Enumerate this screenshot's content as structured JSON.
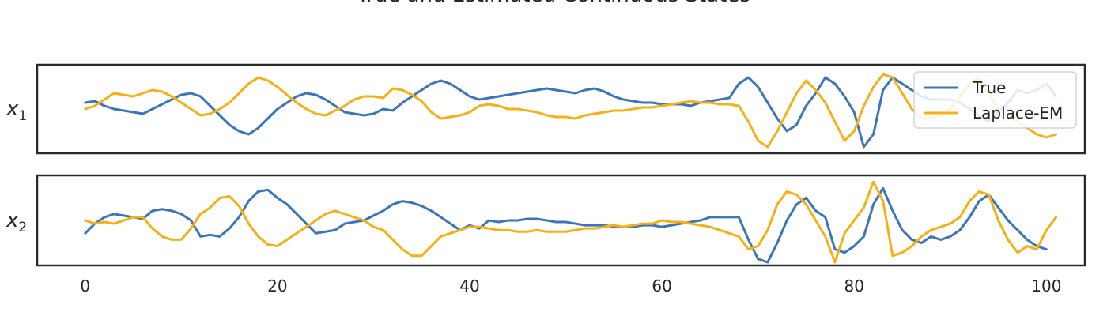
{
  "chart_data": {
    "type": "line",
    "title": "True and Estimated Continuous States",
    "xlim": [
      -5,
      104
    ],
    "x_ticks": [
      0,
      20,
      40,
      60,
      80,
      100
    ],
    "colors": {
      "True": "#3b75bb",
      "Laplace-EM": "#f7b014",
      "frame": "#2a2a2a"
    },
    "legend": {
      "placement": "top-right",
      "entries": [
        "True",
        "Laplace-EM"
      ]
    },
    "grid": false,
    "panels": [
      {
        "ylabel": "x",
        "ylabel_sub": "1",
        "ylim": [
          -1.6,
          1.2
        ],
        "series": [
          {
            "name": "True",
            "values": [
              0.0,
              0.05,
              -0.1,
              -0.2,
              -0.25,
              -0.3,
              -0.35,
              -0.2,
              -0.05,
              0.1,
              0.25,
              0.3,
              0.2,
              -0.1,
              -0.4,
              -0.7,
              -0.9,
              -1.0,
              -0.8,
              -0.5,
              -0.2,
              0.0,
              0.2,
              0.3,
              0.25,
              0.1,
              -0.1,
              -0.3,
              -0.35,
              -0.4,
              -0.35,
              -0.2,
              -0.25,
              0.0,
              0.2,
              0.4,
              0.6,
              0.7,
              0.6,
              0.4,
              0.2,
              0.1,
              0.15,
              0.2,
              0.25,
              0.3,
              0.35,
              0.4,
              0.45,
              0.4,
              0.35,
              0.3,
              0.4,
              0.45,
              0.35,
              0.2,
              0.1,
              0.05,
              0.0,
              0.0,
              -0.05,
              -0.05,
              -0.05,
              -0.1,
              0.0,
              0.05,
              0.1,
              0.15,
              0.6,
              0.8,
              0.5,
              0.0,
              -0.5,
              -0.9,
              -0.7,
              -0.1,
              0.3,
              0.8,
              0.6,
              0.2,
              -0.3,
              -1.4,
              -1.0,
              0.4,
              0.8,
              0.6,
              0.4,
              0.2,
              0.1,
              0.1,
              0.1,
              0.0,
              -0.2,
              -0.4,
              -0.6,
              -0.3,
              0.0,
              0.4,
              0.3,
              0.4,
              0.6,
              0.2
            ]
          },
          {
            "name": "Laplace-EM",
            "values": [
              -0.2,
              -0.1,
              0.1,
              0.3,
              0.25,
              0.2,
              0.3,
              0.4,
              0.35,
              0.2,
              0.0,
              -0.2,
              -0.4,
              -0.35,
              -0.2,
              0.0,
              0.3,
              0.6,
              0.8,
              0.7,
              0.5,
              0.25,
              0.0,
              -0.2,
              -0.35,
              -0.4,
              -0.25,
              -0.1,
              0.1,
              0.2,
              0.2,
              0.15,
              0.45,
              0.4,
              0.25,
              0.05,
              -0.3,
              -0.5,
              -0.45,
              -0.4,
              -0.3,
              -0.1,
              -0.05,
              -0.1,
              -0.2,
              -0.2,
              -0.25,
              -0.3,
              -0.4,
              -0.45,
              -0.45,
              -0.5,
              -0.4,
              -0.35,
              -0.3,
              -0.25,
              -0.25,
              -0.2,
              -0.15,
              -0.15,
              -0.1,
              -0.05,
              0.0,
              0.05,
              0.0,
              0.0,
              -0.05,
              -0.05,
              -0.1,
              -0.6,
              -1.2,
              -1.4,
              -0.9,
              -0.3,
              0.3,
              0.7,
              0.4,
              0.0,
              -0.6,
              -1.2,
              -0.9,
              -0.1,
              0.5,
              0.9,
              0.8,
              0.3,
              -0.2,
              -0.5,
              -0.5,
              -0.4,
              -0.2,
              0.2,
              0.6,
              0.8,
              0.3,
              -0.2,
              -0.4,
              -0.6,
              -0.8,
              -1.0,
              -1.1,
              -1.0
            ]
          }
        ]
      },
      {
        "ylabel": "x",
        "ylabel_sub": "2",
        "ylim": [
          -1.4,
          1.4
        ],
        "series": [
          {
            "name": "True",
            "values": [
              -0.4,
              -0.1,
              0.1,
              0.2,
              0.15,
              0.1,
              0.05,
              0.3,
              0.35,
              0.3,
              0.2,
              0.0,
              -0.5,
              -0.45,
              -0.5,
              -0.25,
              0.1,
              0.6,
              0.9,
              0.95,
              0.7,
              0.5,
              0.2,
              -0.1,
              -0.4,
              -0.35,
              -0.3,
              -0.1,
              -0.05,
              0.0,
              0.15,
              0.3,
              0.5,
              0.6,
              0.55,
              0.45,
              0.3,
              0.1,
              -0.1,
              -0.3,
              -0.15,
              -0.25,
              0.0,
              -0.05,
              0.0,
              0.0,
              0.05,
              0.05,
              0.0,
              -0.05,
              -0.05,
              -0.1,
              -0.15,
              -0.15,
              -0.15,
              -0.2,
              -0.2,
              -0.2,
              -0.15,
              -0.15,
              -0.2,
              -0.15,
              -0.1,
              -0.05,
              0.0,
              0.1,
              0.1,
              0.1,
              0.1,
              -0.6,
              -1.2,
              -1.3,
              -0.7,
              0.0,
              0.5,
              0.7,
              0.3,
              0.1,
              -0.9,
              -1.0,
              -0.8,
              -0.5,
              0.5,
              1.0,
              0.3,
              -0.3,
              -0.6,
              -0.7,
              -0.5,
              -0.6,
              -0.5,
              -0.3,
              0.1,
              0.6,
              0.8,
              0.4,
              0.0,
              -0.3,
              -0.6,
              -0.8,
              -0.9
            ]
          },
          {
            "name": "Laplace-EM",
            "values": [
              0.0,
              -0.1,
              -0.05,
              -0.1,
              0.0,
              0.1,
              0.1,
              -0.25,
              -0.5,
              -0.6,
              -0.6,
              -0.25,
              0.2,
              0.4,
              0.7,
              0.75,
              0.45,
              -0.1,
              -0.5,
              -0.75,
              -0.8,
              -0.6,
              -0.4,
              -0.2,
              0.0,
              0.2,
              0.3,
              0.2,
              0.1,
              0.0,
              -0.2,
              -0.3,
              -0.6,
              -0.9,
              -1.1,
              -1.1,
              -0.8,
              -0.5,
              -0.4,
              -0.3,
              -0.2,
              -0.2,
              -0.25,
              -0.3,
              -0.3,
              -0.35,
              -0.35,
              -0.3,
              -0.35,
              -0.35,
              -0.35,
              -0.3,
              -0.25,
              -0.25,
              -0.2,
              -0.15,
              -0.2,
              -0.15,
              -0.1,
              -0.1,
              0.0,
              -0.05,
              -0.05,
              -0.1,
              -0.15,
              -0.2,
              -0.3,
              -0.4,
              -0.5,
              -0.9,
              -0.8,
              -0.3,
              0.5,
              0.9,
              0.8,
              0.5,
              0.0,
              -0.5,
              -1.3,
              -0.4,
              0.0,
              0.4,
              1.2,
              0.6,
              -1.1,
              -1.0,
              -0.8,
              -0.5,
              -0.3,
              -0.2,
              -0.1,
              0.1,
              0.6,
              0.9,
              0.8,
              0.0,
              -0.6,
              -1.0,
              -0.8,
              -0.9,
              -0.3,
              0.1
            ]
          }
        ]
      }
    ]
  }
}
